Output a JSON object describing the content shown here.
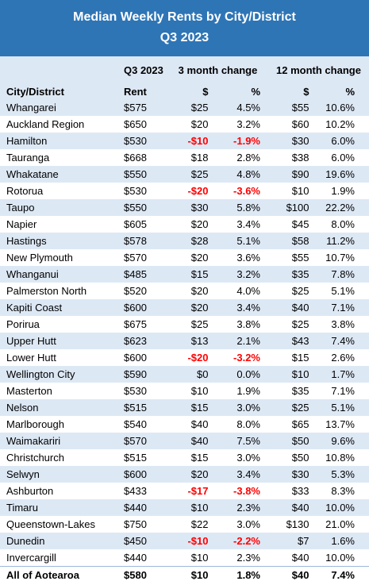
{
  "title_line1": "Median Weekly Rents by City/District",
  "title_line2": "Q3 2023",
  "header": {
    "q3": "Q3 2023",
    "three_month": "3 month change",
    "twelve_month": "12 month change",
    "city": "City/District",
    "rent": "Rent",
    "d3": "$",
    "p3": "%",
    "d12": "$",
    "p12": "%"
  },
  "rows": [
    {
      "city": "Whangarei",
      "rent": "$575",
      "d3": "$25",
      "p3": "4.5%",
      "d12": "$55",
      "p12": "10.6%"
    },
    {
      "city": "Auckland Region",
      "rent": "$650",
      "d3": "$20",
      "p3": "3.2%",
      "d12": "$60",
      "p12": "10.2%"
    },
    {
      "city": "Hamilton",
      "rent": "$530",
      "d3": "-$10",
      "p3": "-1.9%",
      "d12": "$30",
      "p12": "6.0%"
    },
    {
      "city": "Tauranga",
      "rent": "$668",
      "d3": "$18",
      "p3": "2.8%",
      "d12": "$38",
      "p12": "6.0%"
    },
    {
      "city": "Whakatane",
      "rent": "$550",
      "d3": "$25",
      "p3": "4.8%",
      "d12": "$90",
      "p12": "19.6%"
    },
    {
      "city": "Rotorua",
      "rent": "$530",
      "d3": "-$20",
      "p3": "-3.6%",
      "d12": "$10",
      "p12": "1.9%"
    },
    {
      "city": "Taupo",
      "rent": "$550",
      "d3": "$30",
      "p3": "5.8%",
      "d12": "$100",
      "p12": "22.2%"
    },
    {
      "city": "Napier",
      "rent": "$605",
      "d3": "$20",
      "p3": "3.4%",
      "d12": "$45",
      "p12": "8.0%"
    },
    {
      "city": "Hastings",
      "rent": "$578",
      "d3": "$28",
      "p3": "5.1%",
      "d12": "$58",
      "p12": "11.2%"
    },
    {
      "city": "New Plymouth",
      "rent": "$570",
      "d3": "$20",
      "p3": "3.6%",
      "d12": "$55",
      "p12": "10.7%"
    },
    {
      "city": "Whanganui",
      "rent": "$485",
      "d3": "$15",
      "p3": "3.2%",
      "d12": "$35",
      "p12": "7.8%"
    },
    {
      "city": "Palmerston North",
      "rent": "$520",
      "d3": "$20",
      "p3": "4.0%",
      "d12": "$25",
      "p12": "5.1%"
    },
    {
      "city": "Kapiti Coast",
      "rent": "$600",
      "d3": "$20",
      "p3": "3.4%",
      "d12": "$40",
      "p12": "7.1%"
    },
    {
      "city": "Porirua",
      "rent": "$675",
      "d3": "$25",
      "p3": "3.8%",
      "d12": "$25",
      "p12": "3.8%"
    },
    {
      "city": "Upper Hutt",
      "rent": "$623",
      "d3": "$13",
      "p3": "2.1%",
      "d12": "$43",
      "p12": "7.4%"
    },
    {
      "city": "Lower Hutt",
      "rent": "$600",
      "d3": "-$20",
      "p3": "-3.2%",
      "d12": "$15",
      "p12": "2.6%"
    },
    {
      "city": "Wellington City",
      "rent": "$590",
      "d3": "$0",
      "p3": "0.0%",
      "d12": "$10",
      "p12": "1.7%"
    },
    {
      "city": "Masterton",
      "rent": "$530",
      "d3": "$10",
      "p3": "1.9%",
      "d12": "$35",
      "p12": "7.1%"
    },
    {
      "city": "Nelson",
      "rent": "$515",
      "d3": "$15",
      "p3": "3.0%",
      "d12": "$25",
      "p12": "5.1%"
    },
    {
      "city": "Marlborough",
      "rent": "$540",
      "d3": "$40",
      "p3": "8.0%",
      "d12": "$65",
      "p12": "13.7%"
    },
    {
      "city": "Waimakariri",
      "rent": "$570",
      "d3": "$40",
      "p3": "7.5%",
      "d12": "$50",
      "p12": "9.6%"
    },
    {
      "city": "Christchurch",
      "rent": "$515",
      "d3": "$15",
      "p3": "3.0%",
      "d12": "$50",
      "p12": "10.8%"
    },
    {
      "city": "Selwyn",
      "rent": "$600",
      "d3": "$20",
      "p3": "3.4%",
      "d12": "$30",
      "p12": "5.3%"
    },
    {
      "city": "Ashburton",
      "rent": "$433",
      "d3": "-$17",
      "p3": "-3.8%",
      "d12": "$33",
      "p12": "8.3%"
    },
    {
      "city": "Timaru",
      "rent": "$440",
      "d3": "$10",
      "p3": "2.3%",
      "d12": "$40",
      "p12": "10.0%"
    },
    {
      "city": "Queenstown-Lakes",
      "rent": "$750",
      "d3": "$22",
      "p3": "3.0%",
      "d12": "$130",
      "p12": "21.0%"
    },
    {
      "city": "Dunedin",
      "rent": "$450",
      "d3": "-$10",
      "p3": "-2.2%",
      "d12": "$7",
      "p12": "1.6%"
    },
    {
      "city": "Invercargill",
      "rent": "$440",
      "d3": "$10",
      "p3": "2.3%",
      "d12": "$40",
      "p12": "10.0%"
    }
  ],
  "total": {
    "city": "All of Aotearoa",
    "rent": "$580",
    "d3": "$10",
    "p3": "1.8%",
    "d12": "$40",
    "p12": "7.4%"
  },
  "colors": {
    "title_bg": "#2e75b6",
    "band": "#dde8f5",
    "negative": "#ff0000"
  }
}
